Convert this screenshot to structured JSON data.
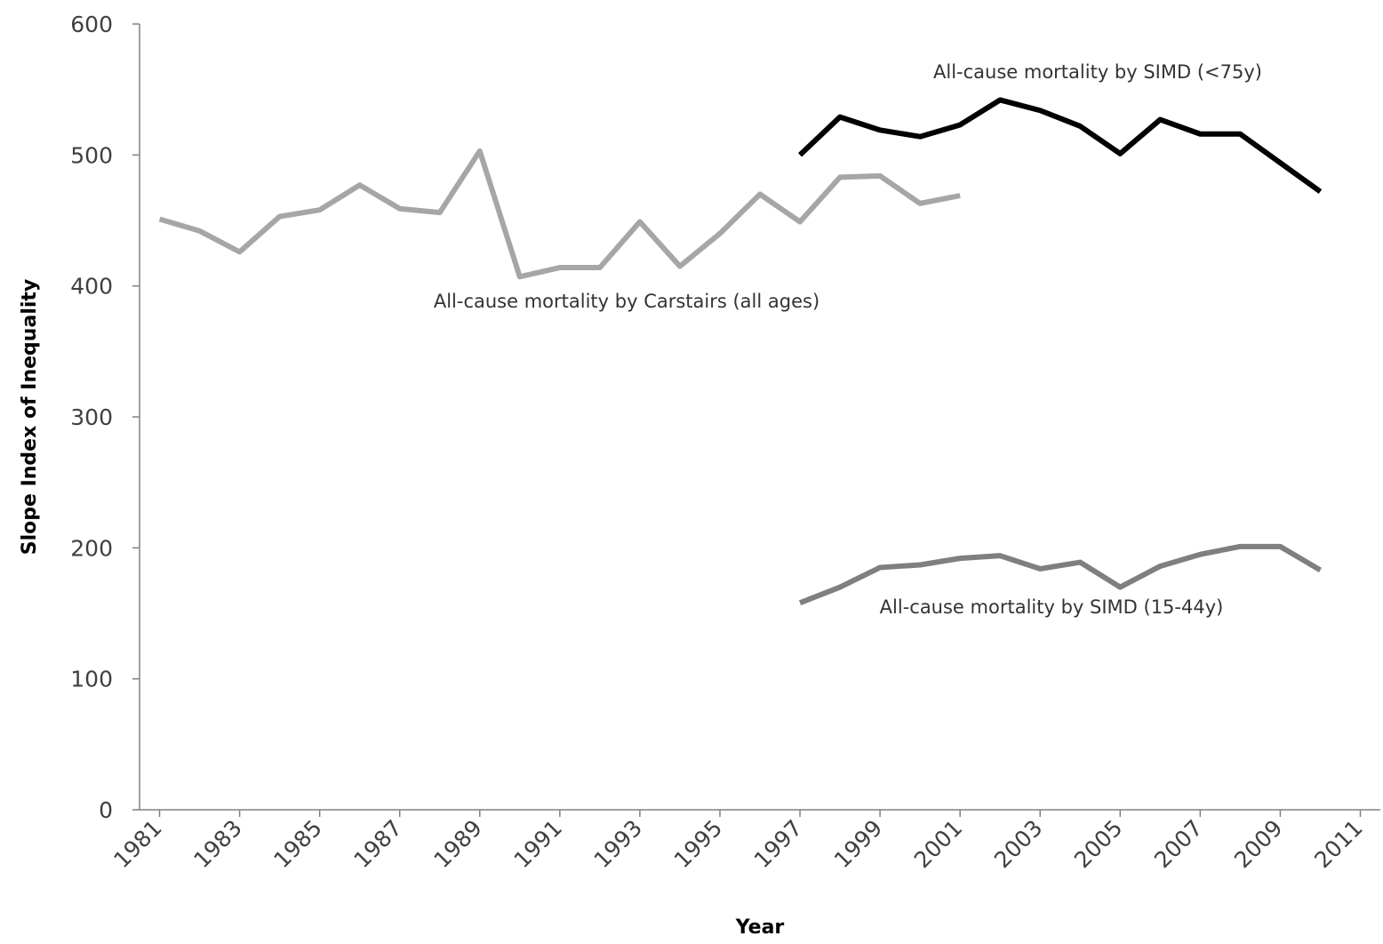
{
  "chart_data": {
    "type": "line",
    "x_label": "Year",
    "y_label": "Slope Index of Inequality",
    "xlim": [
      1980.5,
      2011.5
    ],
    "xticks": [
      1981,
      1983,
      1985,
      1987,
      1989,
      1991,
      1993,
      1995,
      1997,
      1999,
      2001,
      2003,
      2005,
      2007,
      2009,
      2011
    ],
    "ylim": [
      0,
      600
    ],
    "yticks": [
      0,
      100,
      200,
      300,
      400,
      500,
      600
    ],
    "grid": false,
    "series": [
      {
        "name": "All-cause mortality by Carstairs (all ages)",
        "color": "#a6a6a6",
        "x": [
          1981,
          1982,
          1983,
          1984,
          1985,
          1986,
          1987,
          1988,
          1989,
          1990,
          1991,
          1992,
          1993,
          1994,
          1995,
          1996,
          1997,
          1998,
          1999,
          2000,
          2001
        ],
        "values": [
          451,
          442,
          426,
          453,
          458,
          477,
          459,
          456,
          503,
          407,
          414,
          414,
          449,
          415,
          440,
          470,
          449,
          483,
          484,
          463,
          469
        ]
      },
      {
        "name": "All-cause mortality by SIMD (<75y)",
        "color": "#000000",
        "x": [
          1997,
          1998,
          1999,
          2000,
          2001,
          2002,
          2003,
          2004,
          2005,
          2006,
          2007,
          2008,
          2009,
          2010
        ],
        "values": [
          500,
          529,
          519,
          514,
          523,
          542,
          534,
          522,
          501,
          527,
          516,
          516,
          494,
          472
        ]
      },
      {
        "name": "All-cause mortality by SIMD (15-44y)",
        "color": "#7f7f7f",
        "x": [
          1997,
          1998,
          1999,
          2000,
          2001,
          2002,
          2003,
          2004,
          2005,
          2006,
          2007,
          2008,
          2009,
          2010
        ],
        "values": [
          158,
          170,
          185,
          187,
          192,
          194,
          184,
          189,
          170,
          186,
          195,
          201,
          201,
          183
        ]
      }
    ]
  }
}
